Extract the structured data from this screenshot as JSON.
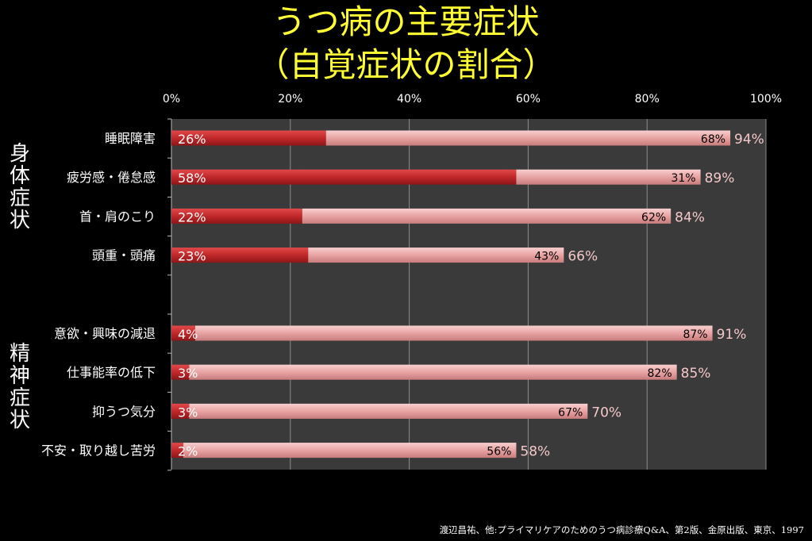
{
  "title_line1": "うつ病の主要症状",
  "title_line2": "（自覚症状の割合）",
  "groups": [
    {
      "label": "身体症状",
      "chars": [
        "身",
        "体",
        "症",
        "状"
      ]
    },
    {
      "label": "精神症状",
      "chars": [
        "精",
        "神",
        "症",
        "状"
      ]
    }
  ],
  "source": "渡辺昌祐、他:プライマリケアのためのうつ病診療Q&A、第2版、金原出版、東京、1997",
  "colors": {
    "dark_series": "#c0282a",
    "light_series": "#e8a3a3",
    "title": "#ffff33"
  },
  "chart_data": {
    "type": "bar",
    "orientation": "horizontal",
    "stacked": true,
    "xlim": [
      0,
      100
    ],
    "x_ticks": [
      "0%",
      "20%",
      "40%",
      "60%",
      "80%",
      "100%"
    ],
    "grid": true,
    "categories": [
      "睡眠障害",
      "疲労感・倦怠感",
      "首・肩のこり",
      "頭重・頭痛",
      "",
      "意欲・興味の減退",
      "仕事能率の低下",
      "抑うつ気分",
      "不安・取り越し苦労"
    ],
    "series": [
      {
        "values": [
          26,
          58,
          22,
          23,
          null,
          4,
          3,
          3,
          2
        ],
        "labels": [
          "26%",
          "58%",
          "22%",
          "23%",
          "",
          "4%",
          "3%",
          "3%",
          "2%"
        ]
      },
      {
        "values": [
          68,
          31,
          62,
          43,
          null,
          87,
          82,
          67,
          56
        ],
        "labels": [
          "68%",
          "31%",
          "62%",
          "43%",
          "",
          "87%",
          "82%",
          "67%",
          "56%"
        ]
      }
    ],
    "totals": [
      "94%",
      "89%",
      "84%",
      "66%",
      "",
      "91%",
      "85%",
      "70%",
      "58%"
    ]
  }
}
